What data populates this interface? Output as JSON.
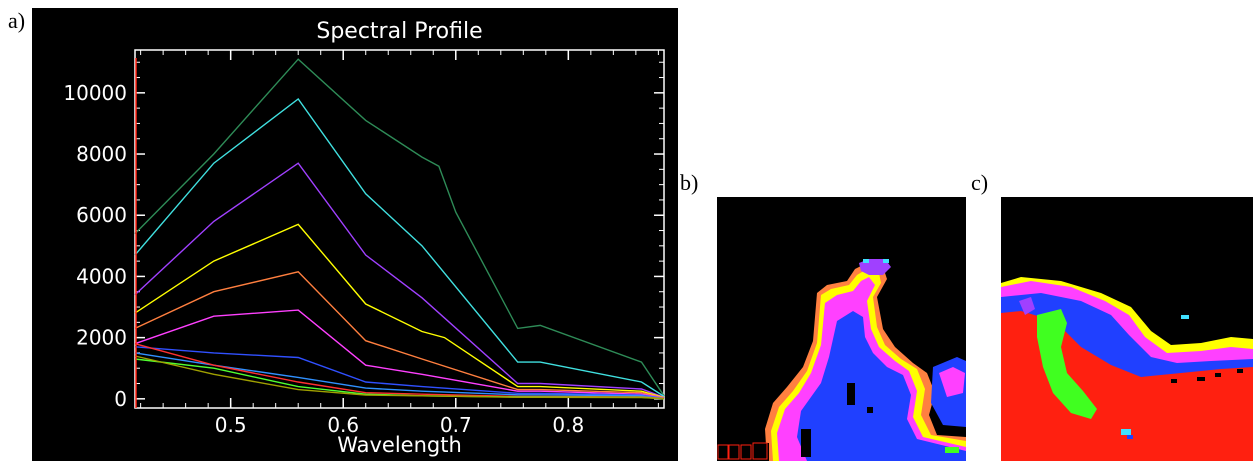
{
  "labels": {
    "a": "a)",
    "b": "b)",
    "c": "c)"
  },
  "chart_data": {
    "type": "line",
    "title": "Spectral Profile",
    "xlabel": "Wavelength",
    "ylabel": "",
    "xlim": [
      0.415,
      0.885
    ],
    "ylim": [
      -300,
      11400
    ],
    "xticks": [
      0.5,
      0.6,
      0.7,
      0.8
    ],
    "xtick_labels": [
      "0.5",
      "0.6",
      "0.7",
      "0.8"
    ],
    "yticks": [
      0,
      2000,
      4000,
      6000,
      8000,
      10000
    ],
    "ytick_labels": [
      "0",
      "2000",
      "4000",
      "6000",
      "8000",
      "10000"
    ],
    "grid": false,
    "background": "#000000",
    "axis_color": "#ffffff",
    "series": [
      {
        "color": "#2e8b57",
        "x": [
          0.415,
          0.485,
          0.56,
          0.62,
          0.67,
          0.685,
          0.7,
          0.755,
          0.775,
          0.865,
          0.885
        ],
        "y": [
          5400,
          8000,
          11100,
          9100,
          7900,
          7600,
          6100,
          2300,
          2400,
          1200,
          100
        ]
      },
      {
        "color": "#40e0e0",
        "x": [
          0.415,
          0.485,
          0.56,
          0.62,
          0.67,
          0.755,
          0.775,
          0.865,
          0.885
        ],
        "y": [
          4700,
          7700,
          9800,
          6700,
          5000,
          1200,
          1200,
          550,
          80
        ]
      },
      {
        "color": "#a040ff",
        "x": [
          0.415,
          0.485,
          0.56,
          0.62,
          0.67,
          0.755,
          0.775,
          0.865,
          0.885
        ],
        "y": [
          3400,
          5800,
          7700,
          4700,
          3300,
          500,
          500,
          320,
          50
        ]
      },
      {
        "color": "#ffff00",
        "x": [
          0.415,
          0.485,
          0.56,
          0.62,
          0.67,
          0.69,
          0.755,
          0.775,
          0.865,
          0.885
        ],
        "y": [
          2800,
          4500,
          5700,
          3100,
          2200,
          2000,
          400,
          400,
          250,
          40
        ]
      },
      {
        "color": "#ff7f3f",
        "x": [
          0.415,
          0.485,
          0.56,
          0.62,
          0.67,
          0.755,
          0.775,
          0.865,
          0.885
        ],
        "y": [
          2300,
          3500,
          4150,
          1900,
          1300,
          300,
          300,
          200,
          30
        ]
      },
      {
        "color": "#ff40ff",
        "x": [
          0.415,
          0.485,
          0.56,
          0.62,
          0.67,
          0.755,
          0.775,
          0.865,
          0.885
        ],
        "y": [
          1800,
          2700,
          2900,
          1100,
          800,
          250,
          250,
          150,
          20
        ]
      },
      {
        "color": "#3050ff",
        "x": [
          0.415,
          0.485,
          0.56,
          0.62,
          0.67,
          0.755,
          0.775,
          0.865,
          0.885
        ],
        "y": [
          1700,
          1500,
          1350,
          550,
          400,
          180,
          180,
          120,
          15
        ]
      },
      {
        "color": "#3090ff",
        "x": [
          0.415,
          0.485,
          0.56,
          0.62,
          0.67,
          0.755,
          0.775,
          0.865,
          0.885
        ],
        "y": [
          1500,
          1100,
          700,
          350,
          250,
          130,
          130,
          100,
          10
        ]
      },
      {
        "color": "#ff3030",
        "x": [
          0.415,
          0.485,
          0.56,
          0.62,
          0.67,
          0.755,
          0.775,
          0.865,
          0.885
        ],
        "y": [
          1800,
          1100,
          550,
          200,
          150,
          80,
          80,
          60,
          10
        ]
      },
      {
        "color": "#50ff30",
        "x": [
          0.415,
          0.485,
          0.56,
          0.62,
          0.67,
          0.755,
          0.775,
          0.865,
          0.885
        ],
        "y": [
          1300,
          1000,
          400,
          150,
          100,
          60,
          60,
          50,
          5
        ]
      },
      {
        "color": "#a0a000",
        "x": [
          0.415,
          0.485,
          0.56,
          0.62,
          0.67,
          0.755,
          0.775,
          0.865,
          0.885
        ],
        "y": [
          1400,
          800,
          300,
          120,
          100,
          50,
          50,
          40,
          5
        ]
      }
    ]
  },
  "maps": {
    "legend_colors": {
      "black": "#000000",
      "red": "#ff2010",
      "magenta": "#ff40ff",
      "blue": "#2040ff",
      "green": "#40ff20",
      "yellow": "#ffff00",
      "orange": "#ff8040",
      "cyan": "#40e0ff",
      "purple": "#a040ff"
    }
  }
}
